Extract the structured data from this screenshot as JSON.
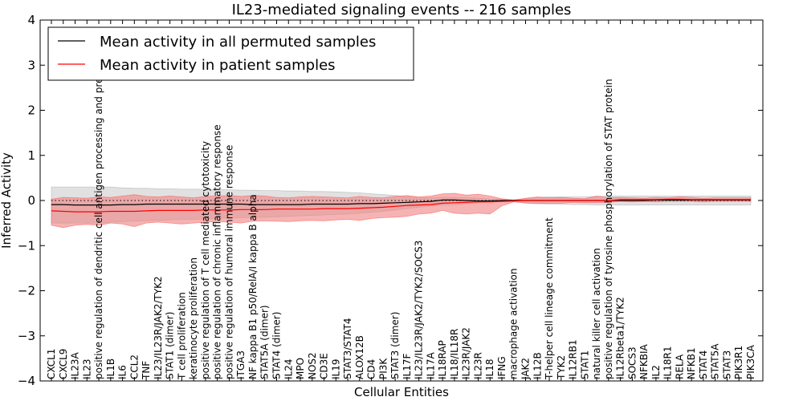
{
  "chart_data": {
    "type": "line",
    "title": "IL23-mediated signaling events -- 216 samples",
    "xlabel": "Cellular Entities",
    "ylabel": "Inferred Activity",
    "ylim": [
      -4,
      4
    ],
    "yticks": [
      "4",
      "3",
      "2",
      "1",
      "0",
      "−1",
      "−2",
      "−3",
      "−4"
    ],
    "legend": {
      "placement": "top-left",
      "entries": [
        {
          "label": "Mean activity in all permuted samples",
          "color": "#000000"
        },
        {
          "label": "Mean activity in patient samples",
          "color": "#ff0000"
        }
      ]
    },
    "categories": [
      "CXCL1",
      "CXCL9",
      "IL23A",
      "IL23",
      "positive regulation of dendritic cell antigen processing and presentation",
      "IL1B",
      "IL6",
      "CCL2",
      "TNF",
      "IL23/IL23R/JAK2/TYK2",
      "STAT1 (dimer)",
      "T cell proliferation",
      "keratinocyte proliferation",
      "positive regulation of T cell mediated cytotoxicity",
      "positive regulation of chronic inflammatory response",
      "positive regulation of humoral immune response",
      "ITGA3",
      "NF kappa B1 p50/RelA/I kappa B alpha",
      "STAT5A (dimer)",
      "STAT4 (dimer)",
      "IL24",
      "MPO",
      "NOS2",
      "CD3E",
      "IL19",
      "STAT3/STAT4",
      "ALOX12B",
      "CD4",
      "PI3K",
      "STAT3 (dimer)",
      "IL17F",
      "IL23/IL23R/JAK2/TYK2/SOCS3",
      "IL17A",
      "IL18RAP",
      "IL18/IL18R",
      "IL23R/JAK2",
      "IL23R",
      "IL18",
      "IFNG",
      "macrophage activation",
      "JAK2",
      "IL12B",
      "T-helper cell lineage commitment",
      "TYK2",
      "IL12RB1",
      "STAT1",
      "natural killer cell activation",
      "positive regulation of tyrosine phosphorylation of STAT protein",
      "IL12Rbeta1/TYK2",
      "SOCS3",
      "NFKBIA",
      "IL2",
      "IL18R1",
      "RELA",
      "NFKB1",
      "STAT4",
      "STAT5A",
      "STAT3",
      "PIK3R1",
      "PIK3CA"
    ],
    "series": [
      {
        "name": "Mean activity in all permuted samples",
        "color": "#000000",
        "values": [
          -0.09,
          -0.09,
          -0.1,
          -0.1,
          -0.1,
          -0.1,
          -0.09,
          -0.09,
          -0.08,
          -0.08,
          -0.08,
          -0.08,
          -0.08,
          -0.08,
          -0.08,
          -0.08,
          -0.08,
          -0.09,
          -0.09,
          -0.09,
          -0.09,
          -0.09,
          -0.08,
          -0.08,
          -0.08,
          -0.08,
          -0.07,
          -0.07,
          -0.06,
          -0.05,
          -0.04,
          -0.03,
          -0.02,
          0.01,
          0.01,
          0.0,
          -0.01,
          -0.01,
          0.0,
          0.0,
          0.0,
          0.0,
          0.0,
          0.0,
          0.0,
          0.0,
          0.0,
          0.0,
          0.0,
          0.0,
          0.0,
          0.01,
          0.01,
          0.01,
          0.01,
          0.01,
          0.01,
          0.01,
          0.01,
          0.01
        ],
        "band_upper": [
          0.3,
          0.3,
          0.3,
          0.3,
          0.3,
          0.3,
          0.28,
          0.27,
          0.27,
          0.26,
          0.26,
          0.25,
          0.25,
          0.25,
          0.24,
          0.24,
          0.23,
          0.23,
          0.22,
          0.22,
          0.21,
          0.21,
          0.2,
          0.2,
          0.19,
          0.18,
          0.17,
          0.15,
          0.13,
          0.11,
          0.08,
          0.07,
          0.06,
          0.07,
          0.07,
          0.06,
          0.05,
          0.03,
          0.02,
          0.01,
          0.04,
          0.07,
          0.08,
          0.08,
          0.08,
          0.08,
          0.09,
          0.1,
          0.1,
          0.1,
          0.1,
          0.1,
          0.1,
          0.1,
          0.1,
          0.1,
          0.1,
          0.1,
          0.1,
          0.1
        ],
        "band_lower": [
          -0.5,
          -0.5,
          -0.5,
          -0.5,
          -0.5,
          -0.48,
          -0.47,
          -0.46,
          -0.45,
          -0.44,
          -0.43,
          -0.42,
          -0.42,
          -0.41,
          -0.4,
          -0.39,
          -0.38,
          -0.38,
          -0.37,
          -0.36,
          -0.35,
          -0.34,
          -0.33,
          -0.32,
          -0.31,
          -0.3,
          -0.28,
          -0.26,
          -0.24,
          -0.21,
          -0.18,
          -0.15,
          -0.12,
          -0.1,
          -0.09,
          -0.07,
          -0.05,
          -0.03,
          -0.02,
          -0.01,
          -0.05,
          -0.07,
          -0.08,
          -0.08,
          -0.09,
          -0.09,
          -0.1,
          -0.1,
          -0.1,
          -0.1,
          -0.1,
          -0.1,
          -0.1,
          -0.1,
          -0.1,
          -0.1,
          -0.1,
          -0.1,
          -0.1,
          -0.1
        ]
      },
      {
        "name": "Mean activity in patient samples",
        "color": "#ff0000",
        "values": [
          -0.23,
          -0.24,
          -0.25,
          -0.25,
          -0.25,
          -0.24,
          -0.24,
          -0.24,
          -0.23,
          -0.22,
          -0.22,
          -0.22,
          -0.22,
          -0.21,
          -0.21,
          -0.21,
          -0.2,
          -0.2,
          -0.2,
          -0.19,
          -0.19,
          -0.19,
          -0.19,
          -0.18,
          -0.18,
          -0.18,
          -0.17,
          -0.16,
          -0.15,
          -0.13,
          -0.11,
          -0.1,
          -0.09,
          -0.06,
          -0.05,
          -0.04,
          -0.03,
          -0.03,
          -0.02,
          -0.01,
          0.0,
          0.0,
          0.0,
          0.0,
          0.0,
          0.0,
          0.0,
          0.0,
          0.02,
          0.02,
          0.02,
          0.02,
          0.03,
          0.03,
          0.02,
          0.02,
          0.02,
          0.02,
          0.02,
          0.02
        ],
        "band_upper": [
          0.03,
          0.07,
          0.06,
          0.05,
          0.08,
          0.07,
          0.1,
          0.13,
          0.09,
          0.08,
          0.1,
          0.08,
          0.06,
          0.09,
          0.1,
          0.11,
          0.09,
          0.11,
          0.1,
          0.07,
          0.06,
          0.08,
          0.09,
          0.08,
          0.07,
          0.06,
          0.09,
          0.07,
          0.06,
          0.09,
          0.11,
          0.08,
          0.1,
          0.15,
          0.16,
          0.12,
          0.14,
          0.1,
          0.04,
          0.01,
          0.05,
          0.08,
          0.06,
          0.07,
          0.05,
          0.04,
          0.1,
          0.06,
          0.07,
          0.06,
          0.05,
          0.07,
          0.06,
          0.08,
          0.07,
          0.05,
          0.06,
          0.06,
          0.06,
          0.06
        ],
        "band_lower": [
          -0.55,
          -0.6,
          -0.55,
          -0.53,
          -0.55,
          -0.5,
          -0.52,
          -0.58,
          -0.5,
          -0.48,
          -0.5,
          -0.52,
          -0.5,
          -0.48,
          -0.47,
          -0.48,
          -0.5,
          -0.46,
          -0.45,
          -0.46,
          -0.47,
          -0.45,
          -0.44,
          -0.45,
          -0.43,
          -0.42,
          -0.44,
          -0.4,
          -0.38,
          -0.37,
          -0.35,
          -0.3,
          -0.28,
          -0.22,
          -0.28,
          -0.3,
          -0.28,
          -0.3,
          -0.12,
          -0.03,
          -0.06,
          -0.07,
          -0.06,
          -0.06,
          -0.04,
          -0.05,
          -0.05,
          -0.04,
          -0.02,
          -0.03,
          -0.02,
          -0.03,
          -0.02,
          -0.02,
          -0.02,
          -0.03,
          -0.02,
          -0.02,
          -0.02,
          -0.02
        ]
      }
    ],
    "reference_line": {
      "y": 0,
      "style": "dotted"
    }
  }
}
